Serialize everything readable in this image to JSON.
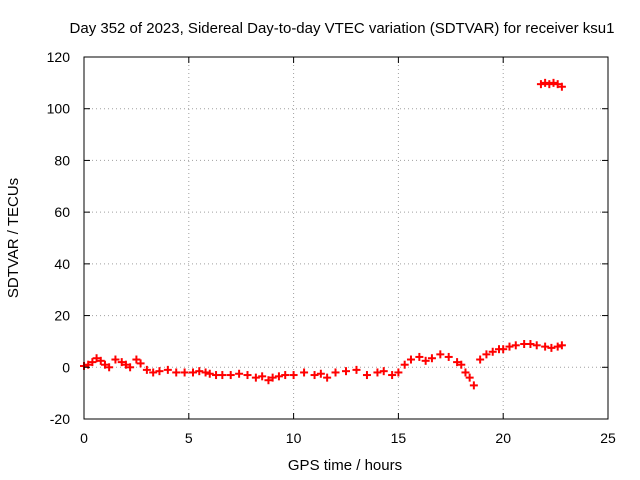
{
  "chart_data": {
    "type": "scatter",
    "title": "Day 352 of 2023, Sidereal Day-to-day VTEC variation (SDTVAR) for receiver ksu1",
    "xlabel": "GPS time / hours",
    "ylabel": "SDTVAR / TECUs",
    "xlim": [
      0,
      25
    ],
    "ylim": [
      -20,
      120
    ],
    "xticks": [
      "0",
      "5",
      "10",
      "15",
      "20",
      "25"
    ],
    "yticks": [
      "-20",
      "0",
      "20",
      "40",
      "60",
      "80",
      "100",
      "120"
    ],
    "grid": true,
    "marker": "plus",
    "series": [
      {
        "name": "SDTVAR",
        "color": "#ff0000",
        "x": [
          0.0,
          0.2,
          0.4,
          0.6,
          0.8,
          1.0,
          1.2,
          1.5,
          1.8,
          2.0,
          2.2,
          2.5,
          2.7,
          3.0,
          3.3,
          3.6,
          4.0,
          4.4,
          4.8,
          5.2,
          5.5,
          5.8,
          6.0,
          6.3,
          6.6,
          7.0,
          7.4,
          7.8,
          8.2,
          8.5,
          8.8,
          9.0,
          9.3,
          9.6,
          10.0,
          10.5,
          11.0,
          11.3,
          11.6,
          12.0,
          12.5,
          13.0,
          13.5,
          14.0,
          14.3,
          14.7,
          15.0,
          15.3,
          15.6,
          16.0,
          16.3,
          16.6,
          17.0,
          17.4,
          17.8,
          18.0,
          18.2,
          18.4,
          18.6,
          18.9,
          19.2,
          19.5,
          19.8,
          20.0,
          20.3,
          20.6,
          21.0,
          21.3,
          21.6,
          22.0,
          22.3,
          22.6,
          22.8,
          21.8,
          22.0,
          22.2,
          22.4,
          22.6,
          22.8
        ],
        "y": [
          0.5,
          1.0,
          2.0,
          3.5,
          2.5,
          1.0,
          0.0,
          3.0,
          2.0,
          1.0,
          0.0,
          3.0,
          1.5,
          -1.0,
          -2.0,
          -1.5,
          -1.0,
          -2.0,
          -2.0,
          -2.0,
          -1.5,
          -2.0,
          -2.5,
          -3.0,
          -3.0,
          -3.0,
          -2.5,
          -3.0,
          -4.0,
          -3.5,
          -5.0,
          -4.0,
          -3.5,
          -3.0,
          -3.0,
          -2.0,
          -3.0,
          -2.5,
          -4.0,
          -2.0,
          -1.5,
          -1.0,
          -3.0,
          -2.0,
          -1.5,
          -3.0,
          -2.0,
          1.0,
          3.0,
          4.0,
          2.5,
          3.5,
          5.0,
          4.0,
          2.0,
          1.0,
          -2.0,
          -4.0,
          -7.0,
          3.0,
          5.0,
          6.0,
          7.0,
          7.0,
          8.0,
          8.5,
          9.0,
          9.0,
          8.5,
          8.0,
          7.5,
          8.0,
          8.5,
          109.5,
          110.0,
          109.5,
          110.0,
          109.5,
          108.5
        ]
      }
    ]
  }
}
